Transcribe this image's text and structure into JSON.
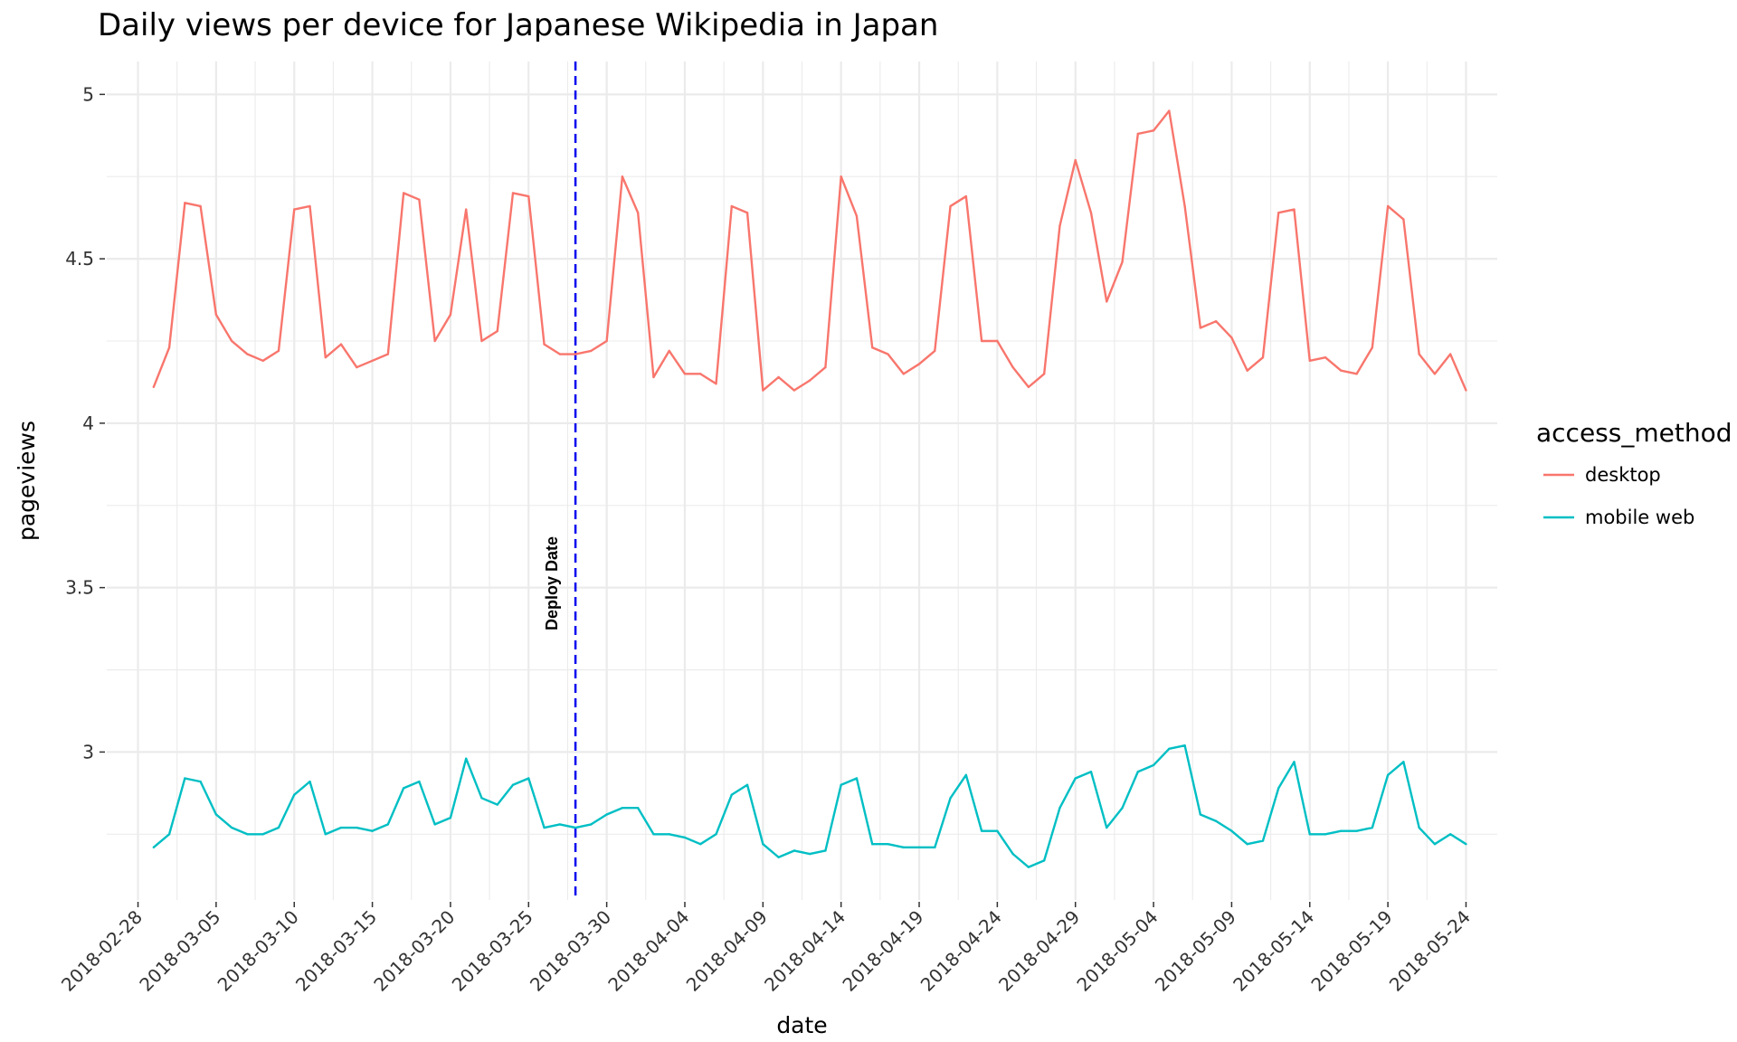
{
  "chart_data": {
    "type": "line",
    "title": "Daily views per device for Japanese Wikipedia in Japan",
    "xlabel": "date",
    "ylabel": "pageviews",
    "x_start": "2018-03-01",
    "x_end": "2018-05-24",
    "xlim": [
      "2018-02-26",
      "2018-05-26"
    ],
    "ylim": [
      2.55,
      5.1
    ],
    "x_ticks": [
      "2018-02-28",
      "2018-03-05",
      "2018-03-10",
      "2018-03-15",
      "2018-03-20",
      "2018-03-25",
      "2018-03-30",
      "2018-04-04",
      "2018-04-09",
      "2018-04-14",
      "2018-04-19",
      "2018-04-24",
      "2018-04-29",
      "2018-05-04",
      "2018-05-09",
      "2018-05-14",
      "2018-05-19",
      "2018-05-24"
    ],
    "y_ticks": [
      {
        "value": 3,
        "label": "3"
      },
      {
        "value": 3.5,
        "label": "3.5"
      },
      {
        "value": 4,
        "label": "4"
      },
      {
        "value": 4.5,
        "label": "4.5"
      },
      {
        "value": 5,
        "label": "5"
      }
    ],
    "grid": true,
    "legend": {
      "title": "access_method",
      "position": "right"
    },
    "annotation": {
      "date": "2018-03-28",
      "label": "Deploy Date",
      "color": "#0000ee",
      "style": "dashed"
    },
    "series": [
      {
        "name": "desktop",
        "color": "#f8766d",
        "values": [
          4.11,
          4.23,
          4.67,
          4.66,
          4.33,
          4.25,
          4.21,
          4.19,
          4.22,
          4.65,
          4.66,
          4.2,
          4.24,
          4.17,
          4.19,
          4.21,
          4.7,
          4.68,
          4.25,
          4.33,
          4.65,
          4.25,
          4.28,
          4.7,
          4.69,
          4.24,
          4.21,
          4.21,
          4.22,
          4.25,
          4.75,
          4.64,
          4.14,
          4.22,
          4.15,
          4.15,
          4.12,
          4.66,
          4.64,
          4.1,
          4.14,
          4.1,
          4.13,
          4.17,
          4.75,
          4.63,
          4.23,
          4.21,
          4.15,
          4.18,
          4.22,
          4.66,
          4.69,
          4.25,
          4.25,
          4.17,
          4.11,
          4.15,
          4.6,
          4.8,
          4.64,
          4.37,
          4.49,
          4.88,
          4.89,
          4.95,
          4.66,
          4.29,
          4.31,
          4.26,
          4.16,
          4.2,
          4.64,
          4.65,
          4.19,
          4.2,
          4.16,
          4.15,
          4.23,
          4.66,
          4.62,
          4.21,
          4.15,
          4.21,
          4.1
        ]
      },
      {
        "name": "mobile web",
        "color": "#00bfc4",
        "values": [
          2.71,
          2.75,
          2.92,
          2.91,
          2.81,
          2.77,
          2.75,
          2.75,
          2.77,
          2.87,
          2.91,
          2.75,
          2.77,
          2.77,
          2.76,
          2.78,
          2.89,
          2.91,
          2.78,
          2.8,
          2.98,
          2.86,
          2.84,
          2.9,
          2.92,
          2.77,
          2.78,
          2.77,
          2.78,
          2.81,
          2.83,
          2.83,
          2.75,
          2.75,
          2.74,
          2.72,
          2.75,
          2.87,
          2.9,
          2.72,
          2.68,
          2.7,
          2.69,
          2.7,
          2.9,
          2.92,
          2.72,
          2.72,
          2.71,
          2.71,
          2.71,
          2.86,
          2.93,
          2.76,
          2.76,
          2.69,
          2.65,
          2.67,
          2.83,
          2.92,
          2.94,
          2.77,
          2.83,
          2.94,
          2.96,
          3.01,
          3.02,
          2.81,
          2.79,
          2.76,
          2.72,
          2.73,
          2.89,
          2.97,
          2.75,
          2.75,
          2.76,
          2.76,
          2.77,
          2.93,
          2.97,
          2.77,
          2.72,
          2.75,
          2.72
        ]
      }
    ]
  }
}
